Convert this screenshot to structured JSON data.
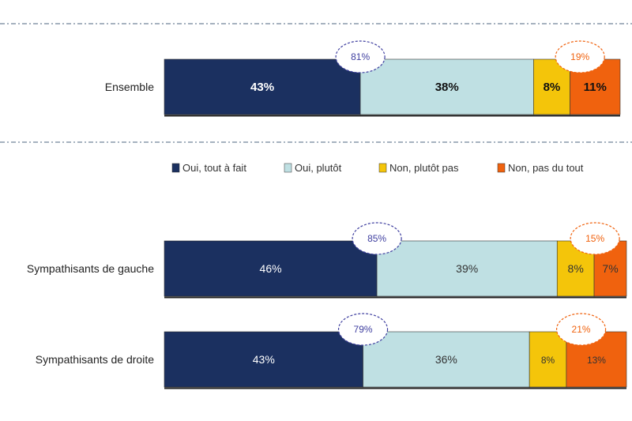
{
  "chart_data": {
    "type": "stacked-bar-horizontal",
    "title": "",
    "categories": [
      "Ensemble",
      "Sympathisants de gauche",
      "Sympathisants de droite"
    ],
    "series": [
      {
        "name": "Oui, tout à fait",
        "color": "#1b3060",
        "values": [
          43,
          46,
          43
        ],
        "labels": [
          "43%",
          "46%",
          "43%"
        ]
      },
      {
        "name": "Oui, plutôt",
        "color": "#bfe0e3",
        "values": [
          38,
          39,
          36
        ],
        "labels": [
          "38%",
          "39%",
          "36%"
        ]
      },
      {
        "name": "Non, plutôt pas",
        "color": "#f4c50a",
        "values": [
          8,
          8,
          8
        ],
        "labels": [
          "8%",
          "8%",
          "8%"
        ]
      },
      {
        "name": "Non, pas du tout",
        "color": "#f0620e",
        "values": [
          11,
          7,
          13
        ],
        "labels": [
          "11%",
          "7%",
          "13%"
        ]
      }
    ],
    "totals": {
      "oui": {
        "values": [
          81,
          85,
          79
        ],
        "labels": [
          "81%",
          "85%",
          "79%"
        ],
        "color": "#4040a0"
      },
      "non": {
        "values": [
          19,
          15,
          21
        ],
        "labels": [
          "19%",
          "15%",
          "21%"
        ],
        "color": "#f0620e"
      }
    },
    "legend": {
      "position": "middle"
    },
    "xlim": [
      0,
      100
    ]
  },
  "colors": {
    "separator": "#8899aa",
    "label_text": "#222222"
  }
}
